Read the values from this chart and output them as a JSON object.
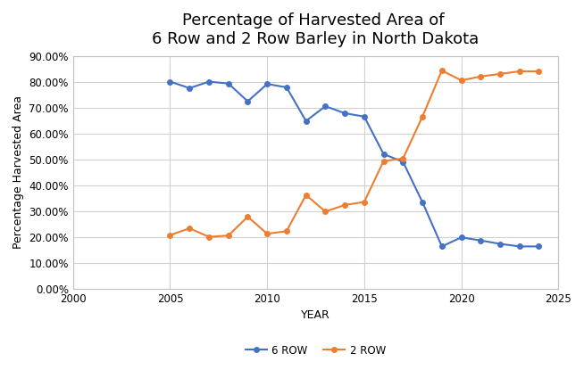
{
  "title": "Percentage of Harvested Area of \n6 Row and 2 Row Barley in North Dakota",
  "xlabel": "YEAR",
  "ylabel": "Percentage Harvested Area",
  "six_row": {
    "years": [
      2005,
      2006,
      2007,
      2008,
      2009,
      2010,
      2011,
      2012,
      2013,
      2014,
      2015,
      2016,
      2017,
      2018,
      2019,
      2020,
      2021,
      2022,
      2023,
      2024
    ],
    "values": [
      0.8,
      0.775,
      0.8,
      0.793,
      0.724,
      0.791,
      0.778,
      0.648,
      0.705,
      0.678,
      0.665,
      0.52,
      0.49,
      0.334,
      0.163,
      0.198,
      0.186,
      0.173,
      0.163,
      0.163
    ]
  },
  "two_row": {
    "years": [
      2005,
      2006,
      2007,
      2008,
      2009,
      2010,
      2011,
      2012,
      2013,
      2014,
      2015,
      2016,
      2017,
      2018,
      2019,
      2020,
      2021,
      2022,
      2023,
      2024
    ],
    "values": [
      0.207,
      0.233,
      0.2,
      0.205,
      0.278,
      0.212,
      0.222,
      0.362,
      0.298,
      0.323,
      0.335,
      0.493,
      0.503,
      0.665,
      0.843,
      0.805,
      0.82,
      0.83,
      0.84,
      0.84
    ]
  },
  "six_row_color": "#4472c4",
  "two_row_color": "#ed7d31",
  "xlim": [
    2000,
    2025
  ],
  "ylim": [
    0.0,
    0.9
  ],
  "yticks": [
    0.0,
    0.1,
    0.2,
    0.3,
    0.4,
    0.5,
    0.6,
    0.7,
    0.8,
    0.9
  ],
  "xticks": [
    2000,
    2005,
    2010,
    2015,
    2020,
    2025
  ],
  "background_color": "#ffffff",
  "plot_bg_color": "#ffffff",
  "grid_color": "#d0d0d0",
  "title_fontsize": 13,
  "axis_label_fontsize": 9,
  "tick_fontsize": 8.5,
  "legend_labels": [
    "6 ROW",
    "2 ROW"
  ],
  "marker": "o",
  "markersize": 4,
  "linewidth": 1.5
}
